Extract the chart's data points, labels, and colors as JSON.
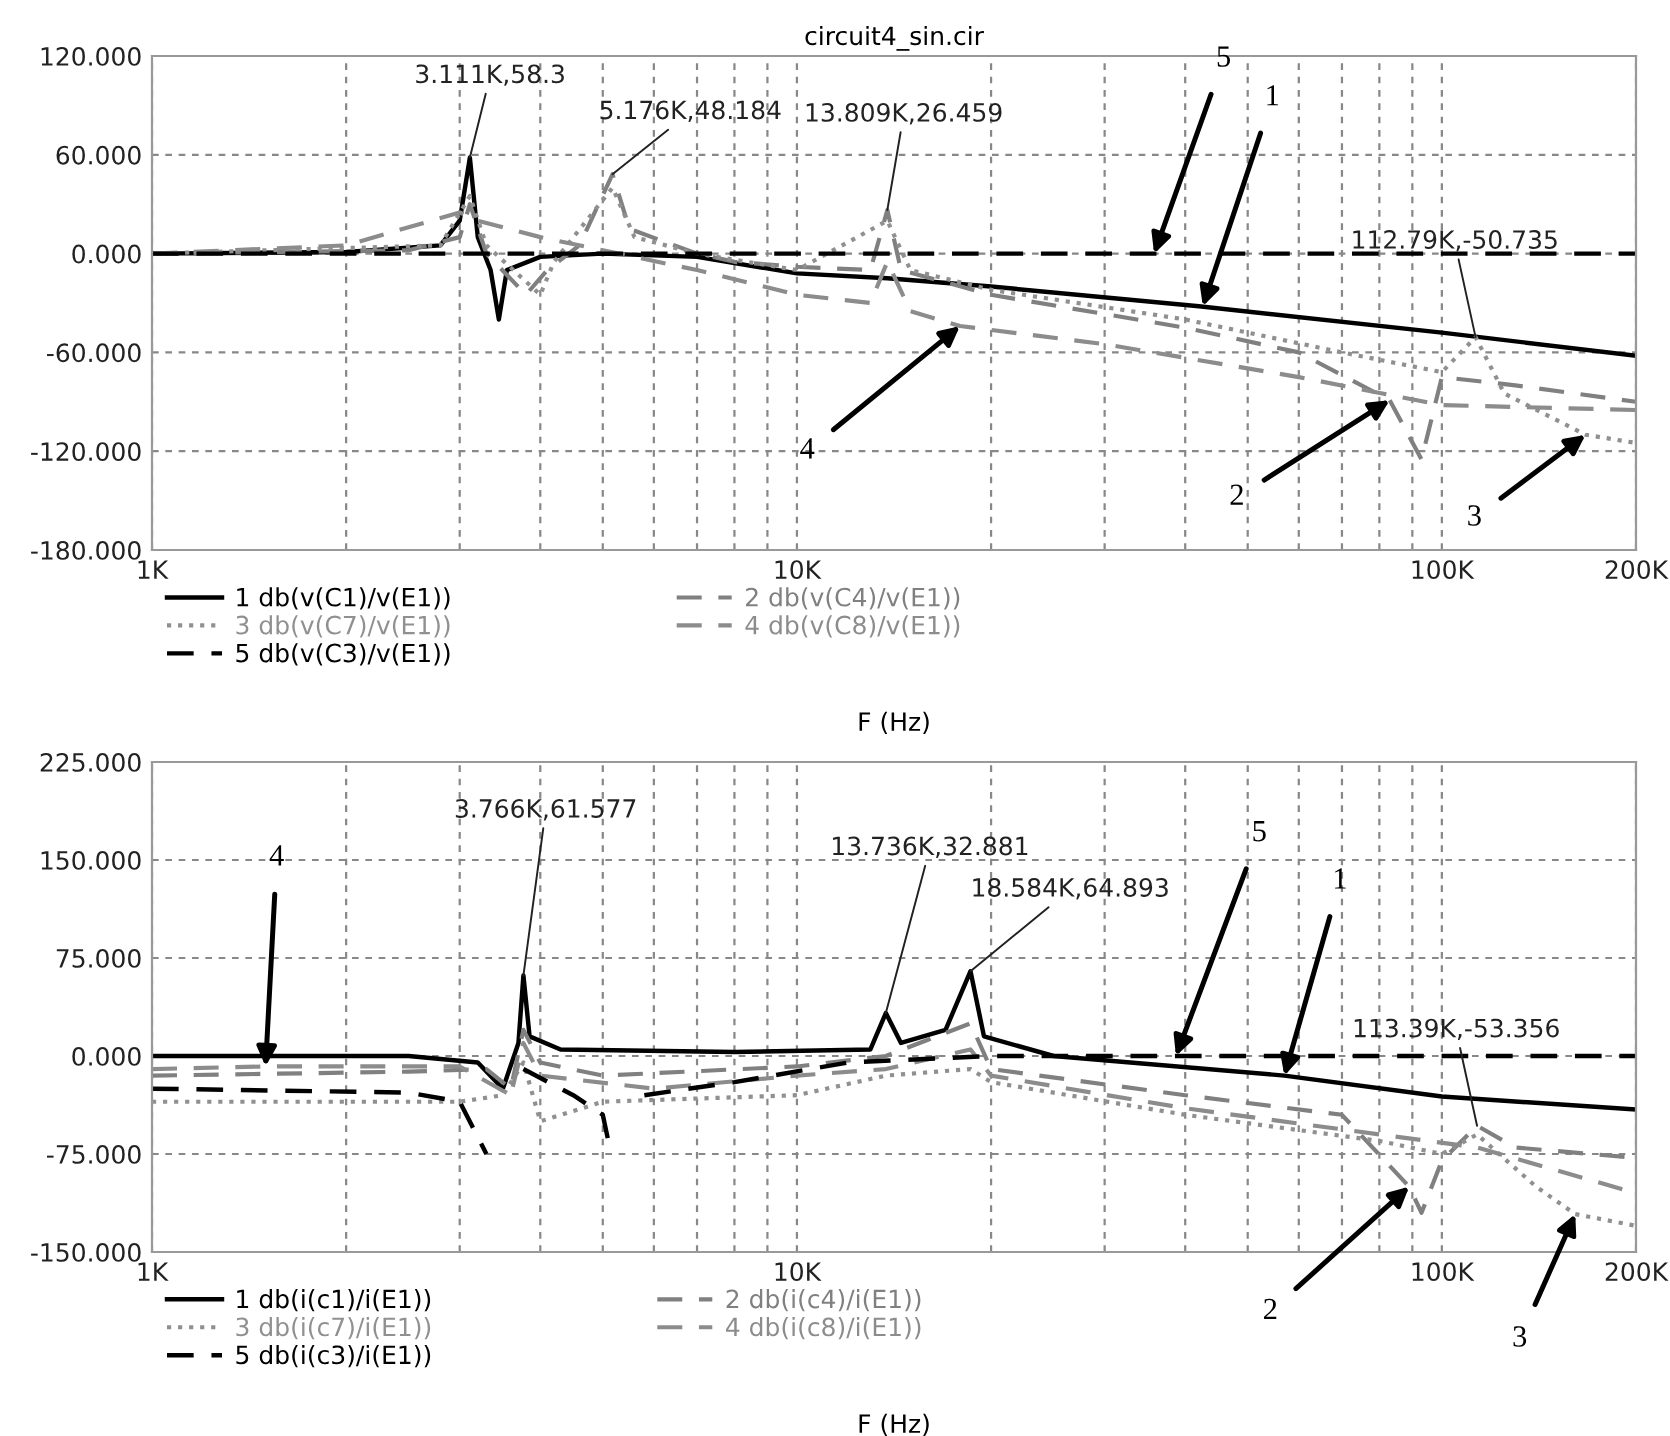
{
  "chart_data": [
    {
      "type": "line",
      "title": "circuit4_sin.cir",
      "xlabel": "F (Hz)",
      "log": "x",
      "grid": true,
      "legend": "bottom",
      "xlim": [
        1000,
        200000
      ],
      "xticks": [
        {
          "value": 1000,
          "label": "1K"
        },
        {
          "value": 2000,
          "label": null
        },
        {
          "value": 3000,
          "label": null
        },
        {
          "value": 4000,
          "label": null
        },
        {
          "value": 5000,
          "label": null
        },
        {
          "value": 6000,
          "label": null
        },
        {
          "value": 7000,
          "label": null
        },
        {
          "value": 8000,
          "label": null
        },
        {
          "value": 9000,
          "label": null
        },
        {
          "value": 10000,
          "label": "10K"
        },
        {
          "value": 20000,
          "label": null
        },
        {
          "value": 30000,
          "label": null
        },
        {
          "value": 40000,
          "label": null
        },
        {
          "value": 50000,
          "label": null
        },
        {
          "value": 60000,
          "label": null
        },
        {
          "value": 70000,
          "label": null
        },
        {
          "value": 80000,
          "label": null
        },
        {
          "value": 90000,
          "label": null
        },
        {
          "value": 100000,
          "label": "100K"
        },
        {
          "value": 200000,
          "label": "200K"
        }
      ],
      "ylim": [
        -180,
        120
      ],
      "yticks": [
        {
          "value": -180,
          "label": "-180.000"
        },
        {
          "value": -120,
          "label": "-120.000"
        },
        {
          "value": -60,
          "label": "-60.000"
        },
        {
          "value": 0,
          "label": "0.000"
        },
        {
          "value": 60,
          "label": "60.000"
        },
        {
          "value": 120,
          "label": "120.000"
        }
      ],
      "series": [
        {
          "name": "1 db(v(C1)/v(E1))",
          "color": "#000000",
          "line_style": "solid",
          "x": [
            1000,
            2000,
            2800,
            3000,
            3111,
            3200,
            3350,
            3450,
            3550,
            4000,
            5000,
            7000,
            10000,
            13809,
            20000,
            42000,
            100000,
            200000
          ],
          "values": [
            0,
            1,
            5,
            20,
            58.3,
            10,
            -10,
            -40,
            -10,
            -2,
            0,
            -2,
            -12,
            -15,
            -20,
            -32,
            -48,
            -62
          ]
        },
        {
          "name": "2 db(v(C4)/v(E1))",
          "color": "#808080",
          "line_style": "dashed",
          "x": [
            1000,
            2500,
            3000,
            3111,
            3300,
            3800,
            4100,
            4600,
            5176,
            5500,
            7000,
            8000,
            10000,
            13000,
            13809,
            14500,
            20000,
            40000,
            60000,
            83000,
            93000,
            100000,
            130000,
            200000
          ],
          "values": [
            0,
            2,
            10,
            30,
            0,
            -25,
            -10,
            5,
            48.184,
            15,
            0,
            -5,
            -8,
            -10,
            26.459,
            -10,
            -25,
            -45,
            -60,
            -89,
            -125,
            -75,
            -80,
            -90
          ]
        },
        {
          "name": "3 db(v(C7)/v(E1))",
          "color": "#909090",
          "line_style": "dotted",
          "x": [
            1000,
            2800,
            3111,
            3300,
            4000,
            4200,
            5176,
            5600,
            7000,
            10000,
            13809,
            15000,
            20000,
            40000,
            70000,
            100000,
            112790,
            125000,
            167000,
            200000
          ],
          "values": [
            0,
            5,
            35,
            5,
            -25,
            -5,
            40,
            10,
            0,
            -10,
            20,
            -10,
            -22,
            -40,
            -60,
            -72,
            -50.735,
            -85,
            -110,
            -115
          ]
        },
        {
          "name": "4 db(v(C8)/v(E1))",
          "color": "#8c8c8c",
          "line_style": "dashed",
          "x": [
            1000,
            2000,
            3000,
            3200,
            4000,
            5000,
            7000,
            10000,
            13000,
            13809,
            15000,
            17900,
            30000,
            60000,
            100000,
            200000
          ],
          "values": [
            0,
            5,
            25,
            20,
            10,
            2,
            -10,
            -25,
            -30,
            -5,
            -35,
            -44,
            -55,
            -75,
            -92,
            -95
          ]
        },
        {
          "name": "5 db(v(C3)/v(E1))",
          "color": "#000000",
          "line_style": "dashed",
          "x": [
            1000,
            200000
          ],
          "values": [
            0,
            0
          ]
        }
      ],
      "annotations": [
        {
          "text": "3.111K,58.3",
          "x": 3111,
          "y": 58.3
        },
        {
          "text": "5.176K,48.184",
          "x": 5176,
          "y": 48.184
        },
        {
          "text": "13.809K,26.459",
          "x": 13809,
          "y": 26.459
        },
        {
          "text": "112.79K,-50.735",
          "x": 112790,
          "y": -50.735
        },
        {
          "text": "5",
          "x": 35800,
          "y": 0
        },
        {
          "text": "1",
          "x": 42600,
          "y": -32
        },
        {
          "text": "4",
          "x": 17900,
          "y": -44
        },
        {
          "text": "2",
          "x": 83000,
          "y": -89
        },
        {
          "text": "3",
          "x": 167000,
          "y": -110
        }
      ]
    },
    {
      "type": "line",
      "xlabel": "F (Hz)",
      "log": "x",
      "grid": true,
      "legend": "bottom",
      "xlim": [
        1000,
        200000
      ],
      "xticks": [
        {
          "value": 1000,
          "label": "1K"
        },
        {
          "value": 2000,
          "label": null
        },
        {
          "value": 3000,
          "label": null
        },
        {
          "value": 4000,
          "label": null
        },
        {
          "value": 5000,
          "label": null
        },
        {
          "value": 6000,
          "label": null
        },
        {
          "value": 7000,
          "label": null
        },
        {
          "value": 8000,
          "label": null
        },
        {
          "value": 9000,
          "label": null
        },
        {
          "value": 10000,
          "label": "10K"
        },
        {
          "value": 20000,
          "label": null
        },
        {
          "value": 30000,
          "label": null
        },
        {
          "value": 40000,
          "label": null
        },
        {
          "value": 50000,
          "label": null
        },
        {
          "value": 60000,
          "label": null
        },
        {
          "value": 70000,
          "label": null
        },
        {
          "value": 80000,
          "label": null
        },
        {
          "value": 90000,
          "label": null
        },
        {
          "value": 100000,
          "label": "100K"
        },
        {
          "value": 200000,
          "label": "200K"
        }
      ],
      "ylim": [
        -150,
        225
      ],
      "yticks": [
        {
          "value": -150,
          "label": "-150.000"
        },
        {
          "value": -75,
          "label": "-75.000"
        },
        {
          "value": 0,
          "label": "0.000"
        },
        {
          "value": 75,
          "label": "75.000"
        },
        {
          "value": 150,
          "label": "150.000"
        },
        {
          "value": 225,
          "label": "225.000"
        }
      ],
      "series": [
        {
          "name": "1 db(i(c1)/i(E1))",
          "color": "#000000",
          "line_style": "solid",
          "x": [
            1000,
            2500,
            3200,
            3500,
            3700,
            3766,
            3850,
            4300,
            8000,
            13000,
            13736,
            14500,
            17000,
            18584,
            19500,
            25000,
            57000,
            100000,
            200000
          ],
          "values": [
            0,
            0,
            -5,
            -25,
            10,
            61.577,
            15,
            5,
            3,
            5,
            32.881,
            10,
            20,
            64.893,
            15,
            0,
            -15,
            -31,
            -41
          ]
        },
        {
          "name": "2 db(i(c4)/i(E1))",
          "color": "#808080",
          "line_style": "dashed",
          "x": [
            1000,
            2500,
            3300,
            3600,
            3766,
            4000,
            5000,
            10000,
            13736,
            18584,
            20000,
            40000,
            70000,
            89000,
            93000,
            100000,
            113390,
            130000,
            200000
          ],
          "values": [
            -15,
            -12,
            -10,
            -25,
            20,
            -5,
            -15,
            -8,
            0,
            25,
            -10,
            -30,
            -45,
            -100,
            -120,
            -80,
            -53.356,
            -70,
            -78
          ]
        },
        {
          "name": "3 db(i(c7)/i(E1))",
          "color": "#909090",
          "line_style": "dotted",
          "x": [
            1000,
            3000,
            3500,
            3766,
            4000,
            5000,
            10000,
            13736,
            18584,
            20000,
            40000,
            80000,
            100000,
            113390,
            140000,
            161000,
            200000
          ],
          "values": [
            -35,
            -35,
            -30,
            -5,
            -50,
            -35,
            -30,
            -15,
            -10,
            -20,
            -45,
            -65,
            -75,
            -60,
            -100,
            -121,
            -130
          ]
        },
        {
          "name": "4 db(i(c8)/i(E1))",
          "color": "#8c8c8c",
          "line_style": "dashed",
          "x": [
            1000,
            1500,
            3000,
            3600,
            3766,
            4000,
            6000,
            10000,
            13736,
            18584,
            20000,
            40000,
            80000,
            113390,
            200000
          ],
          "values": [
            -10,
            -8,
            -8,
            -30,
            10,
            -15,
            -25,
            -15,
            -10,
            5,
            -15,
            -40,
            -60,
            -70,
            -105
          ]
        },
        {
          "name": "5 db(i(c3)/i(E1))",
          "color": "#000000",
          "line_style": "dashed",
          "x": [
            1000,
            2500,
            3000,
            3300,
            3500,
            3766,
            4500,
            5000,
            5150,
            5400,
            5800,
            8000,
            12000,
            20000,
            200000
          ],
          "values": [
            -25,
            -28,
            -35,
            -75,
            null,
            -10,
            -30,
            -45,
            -75,
            null,
            -30,
            -20,
            -5,
            0,
            0
          ]
        }
      ],
      "annotations": [
        {
          "text": "3.766K,61.577",
          "x": 3766,
          "y": 61.577
        },
        {
          "text": "13.736K,32.881",
          "x": 13736,
          "y": 32.881
        },
        {
          "text": "18.584K,64.893",
          "x": 18584,
          "y": 64.893
        },
        {
          "text": "113.39K,-53.356",
          "x": 113390,
          "y": -53.356
        },
        {
          "text": "4",
          "x": 1500,
          "y": -8
        },
        {
          "text": "5",
          "x": 38700,
          "y": 0
        },
        {
          "text": "1",
          "x": 57000,
          "y": -15
        },
        {
          "text": "2",
          "x": 89000,
          "y": -100
        },
        {
          "text": "3",
          "x": 161000,
          "y": -121
        }
      ]
    }
  ]
}
